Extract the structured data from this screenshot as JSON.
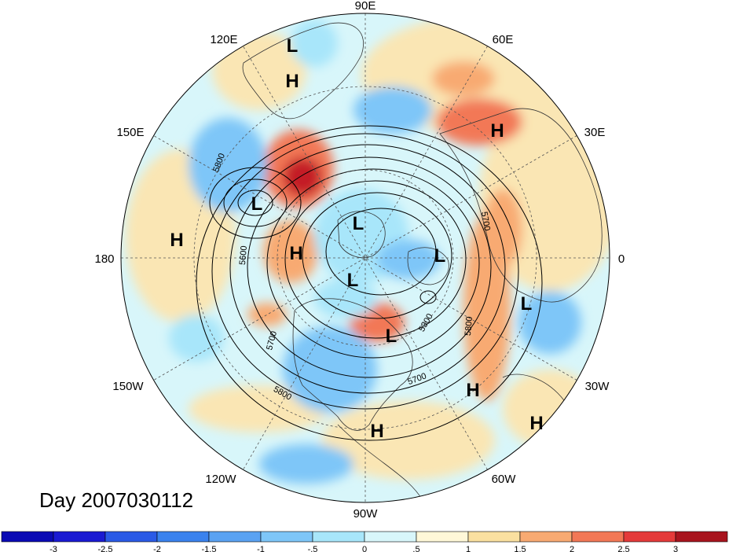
{
  "title": "Day 2007030112",
  "longitude_labels": [
    "90E",
    "60E",
    "30E",
    "0",
    "30W",
    "60W",
    "90W",
    "120W",
    "150W",
    "180",
    "150E",
    "120E"
  ],
  "pressure_systems": [
    {
      "type": "L"
    },
    {
      "type": "H"
    },
    {
      "type": "H"
    },
    {
      "type": "L"
    },
    {
      "type": "L"
    },
    {
      "type": "H"
    },
    {
      "type": "H"
    },
    {
      "type": "L"
    },
    {
      "type": "L"
    },
    {
      "type": "L"
    },
    {
      "type": "L"
    },
    {
      "type": "H"
    },
    {
      "type": "H"
    },
    {
      "type": "H"
    }
  ],
  "contour_labels": [
    "5800",
    "5600",
    "5700",
    "5800",
    "5700",
    "5300",
    "5800",
    "5700"
  ],
  "colorbar": {
    "ticks": [
      "-3",
      "-2.5",
      "-2",
      "-1.5",
      "-1",
      "-.5",
      "0",
      ".5",
      "1",
      "1.5",
      "2",
      "2.5",
      "3"
    ],
    "colors": [
      "#1a1ad2",
      "#2a5ae6",
      "#3a82ee",
      "#5aa2f2",
      "#7ec6f8",
      "#a8e6fa",
      "#d8f6fa",
      "#fff8d8",
      "#fae0a0",
      "#f8aa72",
      "#f27856",
      "#e43a3a",
      "#a8141e"
    ]
  }
}
